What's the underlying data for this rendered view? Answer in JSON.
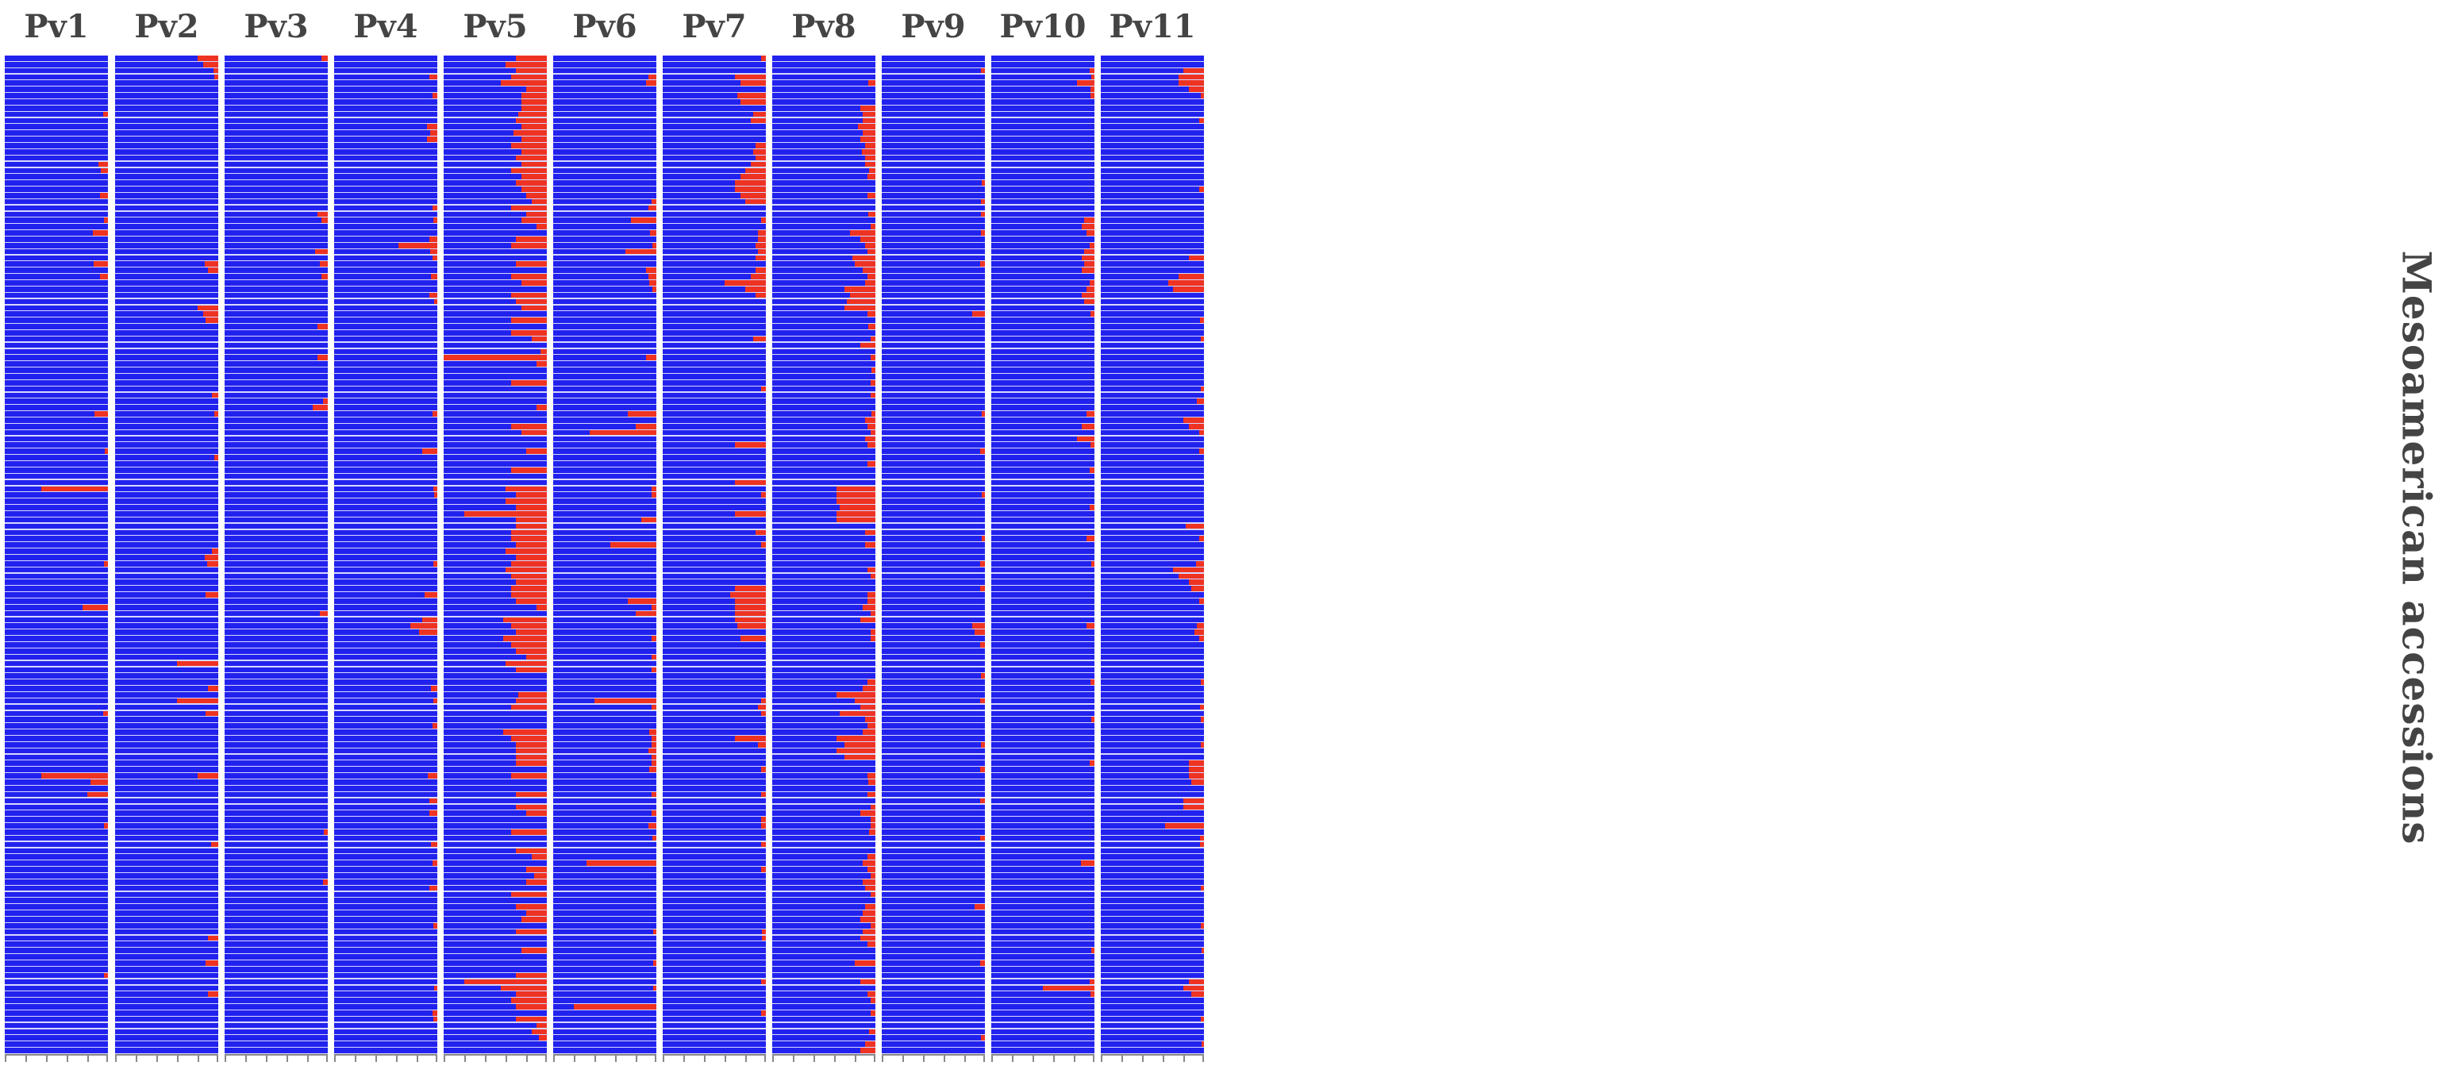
{
  "chart_data": {
    "type": "heatmap",
    "description_of_encoding": "stacked admixture bar plot per chromosome; each row is an accession; red portion = proportion of second ancestry",
    "panels": [
      "Pv1",
      "Pv2",
      "Pv3",
      "Pv4",
      "Pv5",
      "Pv6",
      "Pv7",
      "Pv8",
      "Pv9",
      "Pv10",
      "Pv11"
    ],
    "ylabel": "Mesoamerican accessions",
    "n_rows": 160,
    "colors": {
      "major": "#2222ee",
      "minor": "#ee3322",
      "separator": "#ffffff"
    },
    "xlim": [
      0,
      1
    ],
    "x_ticks": [
      0,
      0.2,
      0.4,
      0.6,
      0.8,
      1.0
    ],
    "red_fractions": {
      "Pv1": {
        "9": 0.05,
        "17": 0.09,
        "18": 0.07,
        "22": 0.08,
        "26": 0.04,
        "28": 0.15,
        "33": 0.14,
        "35": 0.08,
        "57": 0.13,
        "63": 0.03,
        "69": 0.65,
        "81": 0.04,
        "88": 0.25,
        "105": 0.05,
        "115": 0.65,
        "116": 0.17,
        "118": 0.2,
        "123": 0.04,
        "147": 0.04
      },
      "Pv2": {
        "0": 0.2,
        "1": 0.15,
        "2": 0.05,
        "3": 0.04,
        "33": 0.13,
        "34": 0.1,
        "40": 0.2,
        "41": 0.15,
        "42": 0.12,
        "54": 0.06,
        "57": 0.04,
        "64": 0.04,
        "79": 0.06,
        "80": 0.13,
        "81": 0.11,
        "86": 0.12,
        "97": 0.4,
        "101": 0.1,
        "103": 0.4,
        "105": 0.12,
        "115": 0.2,
        "126": 0.07,
        "141": 0.1,
        "145": 0.12,
        "150": 0.1
      },
      "Pv3": {
        "0": 0.06,
        "25": 0.1,
        "26": 0.06,
        "31": 0.12,
        "33": 0.08,
        "35": 0.06,
        "43": 0.1,
        "48": 0.1,
        "55": 0.05,
        "56": 0.15,
        "89": 0.08,
        "124": 0.04,
        "132": 0.05
      },
      "Pv4": {
        "3": 0.08,
        "6": 0.05,
        "11": 0.1,
        "12": 0.07,
        "13": 0.1,
        "24": 0.05,
        "26": 0.04,
        "29": 0.08,
        "30": 0.38,
        "31": 0.07,
        "32": 0.05,
        "35": 0.06,
        "38": 0.08,
        "39": 0.03,
        "57": 0.05,
        "63": 0.15,
        "69": 0.04,
        "70": 0.03,
        "81": 0.04,
        "86": 0.12,
        "90": 0.15,
        "91": 0.26,
        "92": 0.18,
        "101": 0.06,
        "103": 0.04,
        "107": 0.05,
        "115": 0.09,
        "119": 0.08,
        "121": 0.08,
        "126": 0.06,
        "129": 0.05,
        "133": 0.08,
        "139": 0.04,
        "149": 0.03,
        "153": 0.05,
        "154": 0.04
      },
      "Pv5": {
        "0": 0.3,
        "1": 0.4,
        "2": 0.3,
        "3": 0.35,
        "4": 0.45,
        "5": 0.2,
        "6": 0.25,
        "7": 0.25,
        "8": 0.25,
        "9": 0.28,
        "10": 0.3,
        "11": 0.25,
        "12": 0.32,
        "13": 0.25,
        "14": 0.35,
        "15": 0.25,
        "16": 0.3,
        "17": 0.25,
        "18": 0.35,
        "19": 0.25,
        "20": 0.3,
        "21": 0.25,
        "22": 0.2,
        "23": 0.15,
        "24": 0.35,
        "25": 0.2,
        "26": 0.25,
        "27": 0.1,
        "29": 0.3,
        "30": 0.35,
        "33": 0.3,
        "35": 0.35,
        "36": 0.25,
        "38": 0.35,
        "39": 0.3,
        "40": 0.25,
        "42": 0.35,
        "44": 0.35,
        "45": 0.15,
        "47": 0.06,
        "48": 1.0,
        "49": 0.1,
        "52": 0.35,
        "56": 0.1,
        "59": 0.35,
        "60": 0.25,
        "63": 0.2,
        "66": 0.35,
        "69": 0.4,
        "70": 0.3,
        "71": 0.4,
        "72": 0.3,
        "73": 0.8,
        "74": 0.3,
        "75": 0.3,
        "76": 0.35,
        "77": 0.35,
        "78": 0.3,
        "79": 0.4,
        "80": 0.3,
        "81": 0.35,
        "82": 0.4,
        "83": 0.35,
        "84": 0.3,
        "85": 0.35,
        "86": 0.35,
        "87": 0.3,
        "88": 0.1,
        "90": 0.42,
        "91": 0.35,
        "92": 0.3,
        "93": 0.42,
        "94": 0.35,
        "95": 0.3,
        "96": 0.2,
        "97": 0.4,
        "98": 0.3,
        "102": 0.28,
        "103": 0.3,
        "104": 0.35,
        "108": 0.42,
        "109": 0.35,
        "110": 0.3,
        "111": 0.3,
        "112": 0.3,
        "113": 0.3,
        "115": 0.35,
        "118": 0.3,
        "120": 0.3,
        "121": 0.2,
        "124": 0.35,
        "127": 0.3,
        "128": 0.15,
        "130": 0.2,
        "131": 0.12,
        "132": 0.2,
        "134": 0.35,
        "136": 0.3,
        "137": 0.2,
        "138": 0.25,
        "140": 0.3,
        "143": 0.25,
        "147": 0.3,
        "148": 0.8,
        "149": 0.45,
        "150": 0.3,
        "151": 0.35,
        "152": 0.3,
        "154": 0.3,
        "155": 0.1,
        "156": 0.15,
        "157": 0.08
      },
      "Pv6": {
        "3": 0.08,
        "4": 0.1,
        "23": 0.05,
        "24": 0.08,
        "26": 0.25,
        "28": 0.06,
        "30": 0.04,
        "31": 0.3,
        "34": 0.1,
        "35": 0.08,
        "36": 0.07,
        "37": 0.04,
        "48": 0.1,
        "57": 0.28,
        "59": 0.2,
        "60": 0.65,
        "69": 0.05,
        "70": 0.05,
        "74": 0.15,
        "78": 0.45,
        "87": 0.28,
        "88": 0.05,
        "89": 0.2,
        "93": 0.05,
        "96": 0.05,
        "98": 0.05,
        "103": 0.6,
        "104": 0.05,
        "108": 0.07,
        "109": 0.05,
        "110": 0.05,
        "111": 0.08,
        "112": 0.05,
        "113": 0.05,
        "114": 0.07,
        "118": 0.05,
        "121": 0.05,
        "123": 0.08,
        "125": 0.04,
        "129": 0.68,
        "140": 0.03,
        "145": 0.03,
        "149": 0.03,
        "152": 0.8
      },
      "Pv7": {
        "0": 0.05,
        "3": 0.3,
        "4": 0.25,
        "6": 0.28,
        "7": 0.25,
        "9": 0.12,
        "10": 0.15,
        "14": 0.1,
        "15": 0.12,
        "16": 0.1,
        "17": 0.15,
        "18": 0.2,
        "19": 0.25,
        "20": 0.3,
        "21": 0.3,
        "22": 0.25,
        "23": 0.2,
        "26": 0.05,
        "28": 0.08,
        "29": 0.08,
        "30": 0.1,
        "31": 0.08,
        "32": 0.1,
        "34": 0.1,
        "35": 0.15,
        "36": 0.4,
        "37": 0.2,
        "38": 0.1,
        "45": 0.12,
        "53": 0.05,
        "62": 0.3,
        "68": 0.3,
        "70": 0.05,
        "73": 0.3,
        "76": 0.1,
        "78": 0.05,
        "85": 0.3,
        "86": 0.35,
        "87": 0.3,
        "88": 0.3,
        "89": 0.3,
        "90": 0.3,
        "91": 0.28,
        "93": 0.25,
        "103": 0.05,
        "104": 0.08,
        "105": 0.05,
        "109": 0.3,
        "110": 0.08,
        "114": 0.05,
        "118": 0.05,
        "122": 0.05,
        "123": 0.05,
        "126": 0.05,
        "130": 0.05,
        "140": 0.04,
        "141": 0.04,
        "148": 0.05,
        "153": 0.05
      },
      "Pv8": {
        "4": 0.07,
        "8": 0.15,
        "9": 0.12,
        "10": 0.12,
        "11": 0.17,
        "12": 0.12,
        "13": 0.15,
        "14": 0.1,
        "15": 0.13,
        "16": 0.1,
        "17": 0.1,
        "18": 0.06,
        "19": 0.08,
        "22": 0.08,
        "25": 0.07,
        "27": 0.05,
        "28": 0.25,
        "29": 0.15,
        "30": 0.1,
        "31": 0.08,
        "32": 0.22,
        "33": 0.2,
        "34": 0.12,
        "35": 0.08,
        "36": 0.1,
        "37": 0.3,
        "38": 0.25,
        "39": 0.28,
        "40": 0.3,
        "41": 0.08,
        "43": 0.07,
        "45": 0.05,
        "46": 0.15,
        "48": 0.05,
        "50": 0.04,
        "52": 0.05,
        "54": 0.05,
        "57": 0.04,
        "58": 0.1,
        "59": 0.08,
        "60": 0.05,
        "61": 0.1,
        "62": 0.08,
        "65": 0.08,
        "69": 0.38,
        "70": 0.38,
        "71": 0.38,
        "72": 0.35,
        "73": 0.38,
        "74": 0.38,
        "76": 0.1,
        "78": 0.1,
        "82": 0.08,
        "83": 0.05,
        "86": 0.08,
        "87": 0.08,
        "88": 0.12,
        "89": 0.05,
        "90": 0.15,
        "92": 0.05,
        "93": 0.05,
        "100": 0.08,
        "101": 0.12,
        "102": 0.38,
        "103": 0.2,
        "104": 0.15,
        "105": 0.35,
        "106": 0.1,
        "107": 0.08,
        "108": 0.12,
        "109": 0.38,
        "110": 0.3,
        "111": 0.38,
        "112": 0.3,
        "115": 0.08,
        "116": 0.07,
        "118": 0.08,
        "120": 0.05,
        "121": 0.15,
        "122": 0.05,
        "123": 0.05,
        "124": 0.06,
        "128": 0.08,
        "129": 0.12,
        "130": 0.08,
        "131": 0.05,
        "132": 0.12,
        "133": 0.1,
        "134": 0.05,
        "136": 0.1,
        "137": 0.12,
        "138": 0.15,
        "139": 0.05,
        "140": 0.12,
        "141": 0.15,
        "142": 0.08,
        "145": 0.2,
        "148": 0.15,
        "150": 0.08,
        "151": 0.05,
        "153": 0.05,
        "156": 0.06,
        "158": 0.1,
        "159": 0.15
      },
      "Pv9": {
        "2": 0.04,
        "20": 0.03,
        "23": 0.04,
        "25": 0.04,
        "28": 0.04,
        "33": 0.05,
        "41": 0.12,
        "57": 0.03,
        "63": 0.05,
        "70": 0.03,
        "77": 0.03,
        "81": 0.05,
        "85": 0.05,
        "91": 0.12,
        "92": 0.1,
        "94": 0.05,
        "99": 0.04,
        "103": 0.05,
        "110": 0.04,
        "114": 0.05,
        "119": 0.05,
        "125": 0.05,
        "136": 0.1,
        "145": 0.05,
        "157": 0.04
      },
      "Pv10": {
        "2": 0.05,
        "3": 0.03,
        "4": 0.17,
        "5": 0.04,
        "6": 0.04,
        "26": 0.1,
        "27": 0.12,
        "28": 0.08,
        "30": 0.05,
        "31": 0.1,
        "32": 0.12,
        "33": 0.1,
        "34": 0.12,
        "36": 0.05,
        "37": 0.08,
        "38": 0.12,
        "39": 0.1,
        "41": 0.04,
        "57": 0.08,
        "59": 0.12,
        "61": 0.17,
        "62": 0.04,
        "66": 0.05,
        "72": 0.05,
        "77": 0.08,
        "81": 0.03,
        "91": 0.08,
        "100": 0.04,
        "106": 0.03,
        "113": 0.05,
        "129": 0.13,
        "143": 0.03,
        "148": 0.05,
        "149": 0.5,
        "150": 0.04
      },
      "Pv11": {
        "2": 0.2,
        "3": 0.25,
        "4": 0.25,
        "5": 0.15,
        "6": 0.03,
        "10": 0.05,
        "21": 0.05,
        "32": 0.15,
        "35": 0.25,
        "36": 0.35,
        "37": 0.3,
        "42": 0.04,
        "45": 0.03,
        "53": 0.03,
        "55": 0.07,
        "58": 0.2,
        "59": 0.15,
        "60": 0.05,
        "63": 0.05,
        "75": 0.18,
        "77": 0.05,
        "81": 0.08,
        "82": 0.3,
        "83": 0.25,
        "84": 0.15,
        "85": 0.12,
        "87": 0.05,
        "91": 0.07,
        "92": 0.09,
        "93": 0.05,
        "100": 0.03,
        "104": 0.04,
        "106": 0.03,
        "110": 0.03,
        "113": 0.15,
        "114": 0.15,
        "115": 0.15,
        "116": 0.12,
        "119": 0.2,
        "120": 0.2,
        "123": 0.38,
        "125": 0.04,
        "126": 0.04,
        "133": 0.03,
        "139": 0.03,
        "143": 0.02,
        "148": 0.15,
        "149": 0.2,
        "150": 0.12,
        "154": 0.03,
        "158": 0.02
      }
    }
  }
}
